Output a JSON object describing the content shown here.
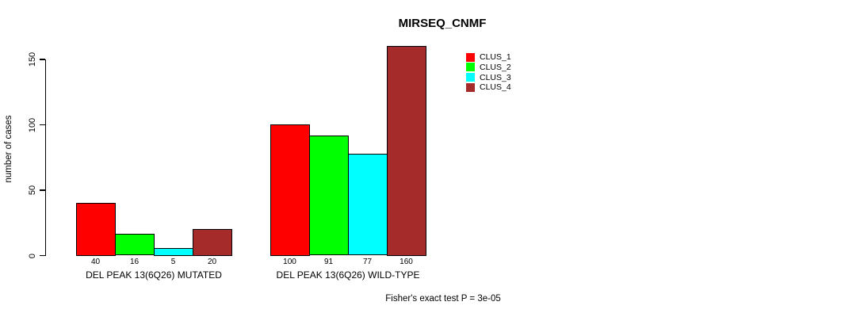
{
  "title": "MIRSEQ_CNMF",
  "y_axis": {
    "label": "number of cases",
    "tick_labels": [
      "0",
      "50",
      "100",
      "150"
    ]
  },
  "footer": "Fisher's exact test P = 3e-05",
  "legend": {
    "items": [
      {
        "label": "CLUS_1",
        "color": "#ff0000"
      },
      {
        "label": "CLUS_2",
        "color": "#00ff00"
      },
      {
        "label": "CLUS_3",
        "color": "#00ffff"
      },
      {
        "label": "CLUS_4",
        "color": "#a52a2a"
      }
    ]
  },
  "chart_data": {
    "type": "bar",
    "title": "MIRSEQ_CNMF",
    "xlabel": "",
    "ylabel": "number of cases",
    "ylim": [
      0,
      150
    ],
    "yticks": [
      0,
      50,
      100,
      150
    ],
    "grid": false,
    "legend_position": "top-right",
    "bar_value_labels": true,
    "categories": [
      "DEL PEAK 13(6Q26) MUTATED",
      "DEL PEAK 13(6Q26) WILD-TYPE"
    ],
    "series": [
      {
        "name": "CLUS_1",
        "color": "#ff0000",
        "values": [
          40,
          100
        ]
      },
      {
        "name": "CLUS_2",
        "color": "#00ff00",
        "values": [
          16,
          91
        ]
      },
      {
        "name": "CLUS_3",
        "color": "#00ffff",
        "values": [
          5,
          77
        ]
      },
      {
        "name": "CLUS_4",
        "color": "#a52a2a",
        "values": [
          20,
          160
        ]
      }
    ],
    "annotation": "Fisher's exact test P = 3e-05"
  }
}
